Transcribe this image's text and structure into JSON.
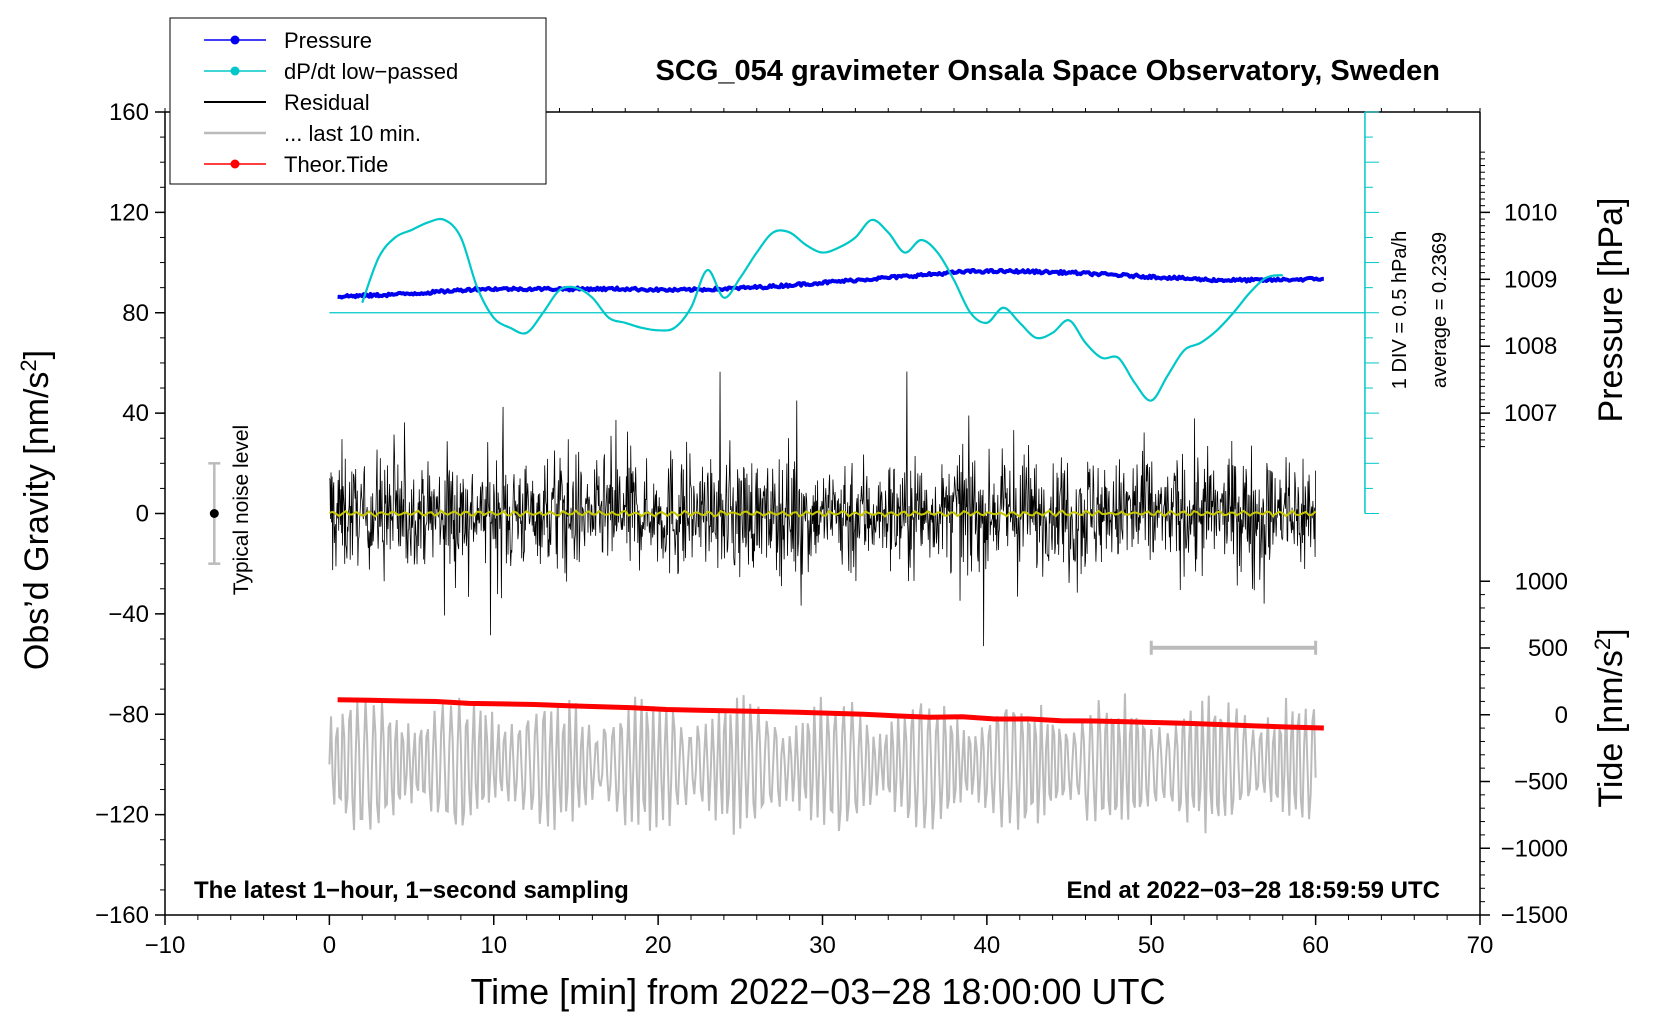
{
  "chart_data": {
    "type": "line",
    "title": "SCG_054 gravimeter Onsala Space Observatory, Sweden",
    "xlabel": "Time [min] from 2022−03−28 18:00:00 UTC",
    "ylabel_left": "Obs’d Gravity [nm/s",
    "ylabel_left_sup": "2",
    "ylabel_left_close": "]",
    "ylabel_pressure": "Pressure [hPa]",
    "ylabel_tide": "Tide [nm/s",
    "ylabel_tide_sup": "2",
    "ylabel_tide_close": "]",
    "xlim": [
      -10,
      70
    ],
    "ylim": [
      -160,
      160
    ],
    "x_ticks": [
      -10,
      0,
      10,
      20,
      30,
      40,
      50,
      60,
      70
    ],
    "x_tick_labels": [
      "−10",
      "0",
      "10",
      "20",
      "30",
      "40",
      "50",
      "60",
      "70"
    ],
    "y_ticks": [
      -160,
      -120,
      -80,
      -40,
      0,
      40,
      80,
      120,
      160
    ],
    "y_tick_labels": [
      "−160",
      "−120",
      "−80",
      "−40",
      "0",
      "40",
      "80",
      "120",
      "160"
    ],
    "pressure_axis": {
      "ticks": [
        1007,
        1008,
        1009,
        1010
      ],
      "tick_labels": [
        "1007",
        "1008",
        "1009",
        "1010"
      ],
      "range_in_gravity_units": {
        "1007": 40,
        "1010": 120
      }
    },
    "tide_axis": {
      "ticks": [
        -1500,
        -1000,
        -500,
        0,
        500,
        1000
      ],
      "tick_labels": [
        "−1500",
        "−1000",
        "−500",
        "0",
        "500",
        "1000"
      ],
      "range_in_gravity_units": {
        "-1500": -160,
        "1000": -27
      }
    },
    "dpdt_scale_label": "1 DIV = 0.5 hPa/h",
    "dpdt_average_label": "average = 0.2369",
    "noise_label": "Typical noise level",
    "noise_bar": {
      "x": -7,
      "y": 0,
      "low": -20,
      "high": 20
    },
    "last10_bracket": {
      "x_start": 50,
      "x_end": 60
    },
    "footer_left": "The latest 1−hour, 1−second sampling",
    "footer_right": "End at 2022−03−28 18:59:59 UTC",
    "legend": [
      {
        "label": "Pressure",
        "color": "#0000ee",
        "marker": true
      },
      {
        "label": "dP/dt low−passed",
        "color": "#00c8c8",
        "marker": true
      },
      {
        "label": "Residual",
        "color": "#000000",
        "marker": false
      },
      {
        "label": "... last 10 min.",
        "color": "#bbbbbb",
        "marker": false
      },
      {
        "label": "Theor.Tide",
        "color": "#ff0000",
        "marker": true
      }
    ],
    "series": [
      {
        "name": "Pressure",
        "axis": "gravity",
        "x": [
          0.5,
          3,
          6,
          9,
          12,
          15,
          18,
          21,
          24,
          27,
          30,
          33,
          36,
          39,
          42,
          45,
          48,
          51,
          54,
          57,
          60.5
        ],
        "y": [
          86.5,
          87,
          88,
          89.5,
          89.5,
          89.5,
          89.5,
          89,
          89.5,
          90.5,
          92,
          93.5,
          95,
          96.5,
          96.5,
          96,
          95,
          94,
          93,
          93,
          93.5
        ]
      },
      {
        "name": "dP/dt low-passed",
        "axis": "gravity",
        "x": [
          2,
          3,
          4,
          5,
          6,
          7,
          8,
          9,
          10,
          11,
          12,
          13,
          14,
          15,
          16,
          17,
          18,
          19,
          20,
          21,
          22,
          23,
          24,
          25,
          26,
          27,
          28,
          29,
          30,
          31,
          32,
          33,
          34,
          35,
          36,
          37,
          38,
          39,
          40,
          41,
          42,
          43,
          44,
          45,
          46,
          47,
          48,
          49,
          50,
          51,
          52,
          53,
          54,
          55,
          56,
          57,
          58
        ],
        "y": [
          84,
          102,
          110,
          113,
          116,
          117,
          110,
          90,
          78,
          74,
          72,
          80,
          89,
          90,
          86,
          78,
          76,
          74,
          73,
          74,
          82,
          97,
          86,
          94,
          104,
          112,
          112,
          107,
          104,
          106,
          110,
          117,
          112,
          104,
          109,
          104,
          93,
          80,
          76,
          82,
          76,
          70,
          72,
          77,
          68,
          62,
          62,
          52,
          45,
          55,
          65,
          68,
          73,
          80,
          88,
          94,
          95
        ]
      },
      {
        "name": "dP/dt average",
        "axis": "gravity",
        "x": [
          0,
          63
        ],
        "y": [
          80,
          80
        ]
      },
      {
        "name": "Residual",
        "axis": "gravity",
        "x_range": [
          0,
          60
        ],
        "envelope": {
          "typical": 25,
          "max": 65,
          "min": -65
        },
        "running_mean": 0
      },
      {
        "name": "... last 10 min.",
        "axis": "gravity",
        "x_range": [
          0,
          60
        ],
        "offset": -100,
        "envelope": {
          "typical": 22,
          "max": 50
        }
      },
      {
        "name": "Theor.Tide",
        "axis": "gravity",
        "x": [
          0.5,
          60.5
        ],
        "y": [
          -74,
          -85.5
        ]
      }
    ]
  }
}
